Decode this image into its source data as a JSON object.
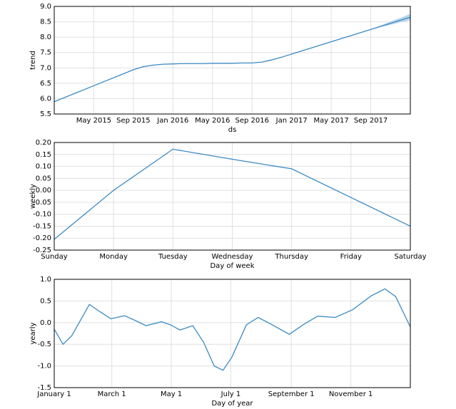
{
  "chart_data": [
    {
      "type": "line",
      "ylabel": "trend",
      "xlabel": "ds",
      "x": [
        "2015-01",
        "2015-02",
        "2015-03",
        "2015-04",
        "2015-05",
        "2015-06",
        "2015-07",
        "2015-08",
        "2015-09",
        "2015-10",
        "2015-11",
        "2015-12",
        "2016-01",
        "2016-02",
        "2016-03",
        "2016-04",
        "2016-05",
        "2016-06",
        "2016-07",
        "2016-08",
        "2016-09",
        "2016-10",
        "2016-11",
        "2016-12",
        "2017-01",
        "2017-02",
        "2017-03",
        "2017-04",
        "2017-05",
        "2017-06",
        "2017-07",
        "2017-08",
        "2017-09",
        "2017-10",
        "2017-11",
        "2017-12",
        "2018-01"
      ],
      "values": [
        5.9,
        6.03,
        6.16,
        6.29,
        6.42,
        6.55,
        6.68,
        6.81,
        6.94,
        7.04,
        7.09,
        7.12,
        7.13,
        7.14,
        7.14,
        7.14,
        7.15,
        7.15,
        7.15,
        7.16,
        7.16,
        7.19,
        7.26,
        7.35,
        7.45,
        7.55,
        7.65,
        7.75,
        7.85,
        7.95,
        8.05,
        8.15,
        8.25,
        8.35,
        8.45,
        8.55,
        8.65
      ],
      "upper": [
        null,
        null,
        null,
        null,
        null,
        null,
        null,
        null,
        null,
        null,
        null,
        null,
        null,
        null,
        null,
        null,
        null,
        null,
        null,
        null,
        null,
        null,
        null,
        null,
        null,
        null,
        null,
        null,
        null,
        null,
        null,
        null,
        8.26,
        8.38,
        8.51,
        8.63,
        8.76
      ],
      "lower": [
        null,
        null,
        null,
        null,
        null,
        null,
        null,
        null,
        null,
        null,
        null,
        null,
        null,
        null,
        null,
        null,
        null,
        null,
        null,
        null,
        null,
        null,
        null,
        null,
        null,
        null,
        null,
        null,
        null,
        null,
        null,
        null,
        8.24,
        8.33,
        8.4,
        8.48,
        8.55
      ],
      "color": "#3a8bc4",
      "band_color": "#b9d5ec",
      "xlim": [
        "2015-01",
        "2018-01"
      ],
      "xticks": [
        {
          "value": "2015-05",
          "label": "May 2015"
        },
        {
          "value": "2015-09",
          "label": "Sep 2015"
        },
        {
          "value": "2016-01",
          "label": "Jan 2016"
        },
        {
          "value": "2016-05",
          "label": "May 2016"
        },
        {
          "value": "2016-09",
          "label": "Sep 2016"
        },
        {
          "value": "2017-01",
          "label": "Jan 2017"
        },
        {
          "value": "2017-05",
          "label": "May 2017"
        },
        {
          "value": "2017-09",
          "label": "Sep 2017"
        }
      ],
      "ylim": [
        5.5,
        9.0
      ],
      "yticks": [
        5.5,
        {
          "value": 6,
          "label": "6.0"
        },
        6.5,
        {
          "value": 7,
          "label": "7.0"
        },
        7.5,
        {
          "value": 8,
          "label": "8.0"
        },
        8.5,
        {
          "value": 9,
          "label": "9.0"
        }
      ],
      "grid": true
    },
    {
      "type": "line",
      "ylabel": "weekly",
      "xlabel": "Day of week",
      "categories": [
        "Sunday",
        "Monday",
        "Tuesday",
        "Wednesday",
        "Thursday",
        "Friday",
        "Saturday"
      ],
      "values": [
        -0.205,
        0.0,
        0.172,
        0.13,
        0.09,
        -0.03,
        -0.15
      ],
      "color": "#3a8bc4",
      "ylim": [
        -0.25,
        0.2
      ],
      "yticks": [
        -0.25,
        {
          "value": -0.2,
          "label": "-0.20"
        },
        -0.15,
        {
          "value": -0.1,
          "label": "-0.10"
        },
        -0.05,
        {
          "value": 0,
          "label": "0.00"
        },
        0.05,
        {
          "value": 0.1,
          "label": "0.10"
        },
        0.15,
        {
          "value": 0.2,
          "label": "0.20"
        }
      ],
      "grid": true
    },
    {
      "type": "line",
      "ylabel": "yearly",
      "xlabel": "Day of year",
      "x": [
        0,
        9,
        18,
        36,
        47,
        58,
        72,
        83,
        94,
        110,
        119,
        129,
        142,
        153,
        164,
        173,
        182,
        197,
        209,
        221,
        241,
        255,
        270,
        288,
        306,
        325,
        339,
        350,
        365
      ],
      "values": [
        -0.15,
        -0.5,
        -0.3,
        0.42,
        0.25,
        0.09,
        0.16,
        0.05,
        -0.07,
        0.02,
        -0.05,
        -0.17,
        -0.07,
        -0.45,
        -1.0,
        -1.1,
        -0.8,
        -0.05,
        0.12,
        -0.02,
        -0.27,
        -0.05,
        0.15,
        0.12,
        0.3,
        0.62,
        0.78,
        0.6,
        -0.1
      ],
      "color": "#3a8bc4",
      "xlim": [
        0,
        365
      ],
      "xticks": [
        {
          "value": 0,
          "label": "January 1"
        },
        {
          "value": 59,
          "label": "March 1"
        },
        {
          "value": 120,
          "label": "May 1"
        },
        {
          "value": 181,
          "label": "July 1"
        },
        {
          "value": 243,
          "label": "September 1"
        },
        {
          "value": 304,
          "label": "November 1"
        }
      ],
      "ylim": [
        -1.5,
        1.0
      ],
      "yticks": [
        -1.5,
        {
          "value": -1,
          "label": "-1.0"
        },
        -0.5,
        {
          "value": 0,
          "label": "0.0"
        },
        0.5,
        {
          "value": 1,
          "label": "1.0"
        }
      ],
      "grid": true
    }
  ]
}
